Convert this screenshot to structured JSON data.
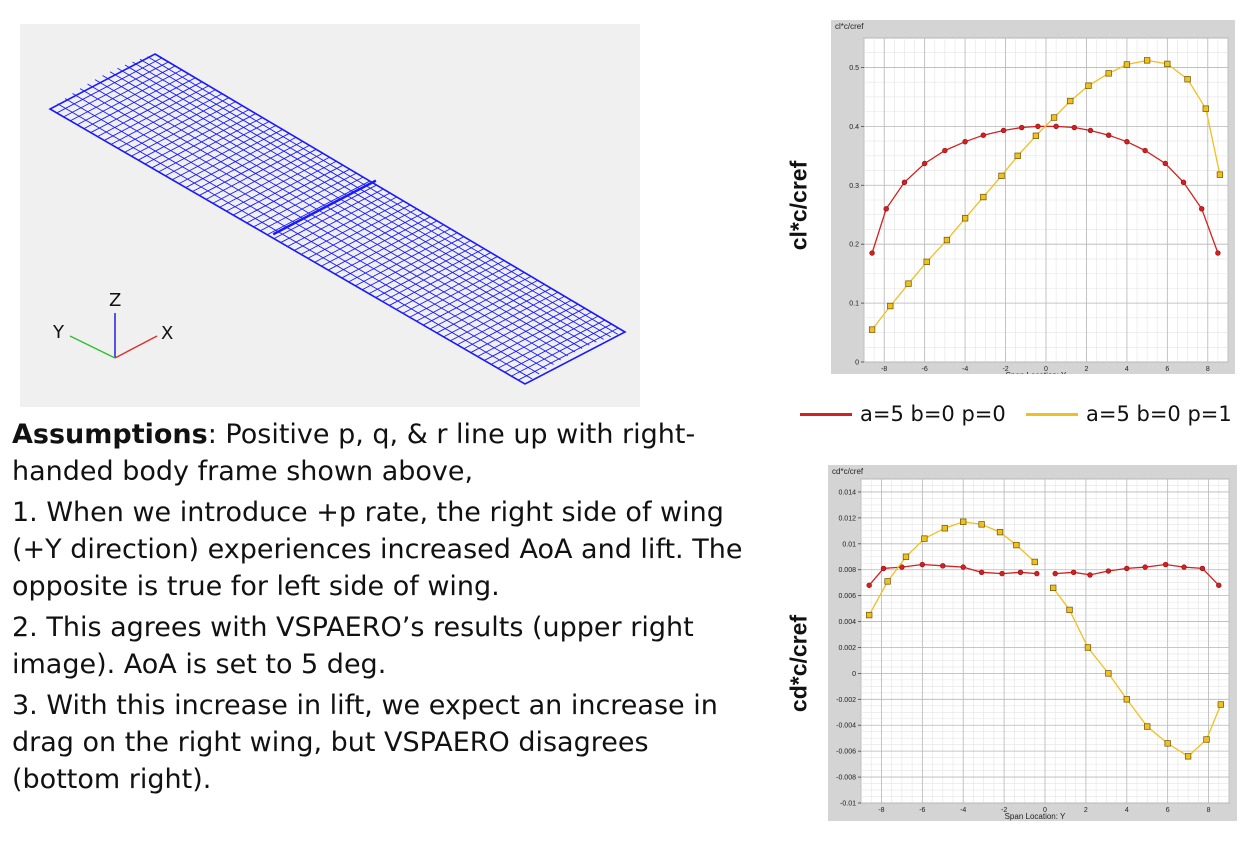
{
  "wing_view": {
    "axes": {
      "x": "X",
      "y": "Y",
      "z": "Z"
    },
    "colors": {
      "mesh": "#1a1aff",
      "x_axis": "#e03030",
      "y_axis": "#30c030",
      "z_axis": "#2020e0"
    }
  },
  "text": {
    "assumptions_bold": "Assumptions",
    "assumptions_rest": ": Positive p, q, & r line up with right-handed body frame shown above,",
    "point1": "1. When we introduce +p rate, the right side of wing (+Y direction) experiences increased AoA and lift. The opposite is true for left side of wing.",
    "point2": "2. This agrees with VSPAERO’s results (upper right image). AoA is set to 5 deg.",
    "point3": "3. With this increase in lift, we expect an increase in drag on the right wing, but VSPAERO disagrees (bottom right)."
  },
  "legend": {
    "items": [
      {
        "label": "a=5 b=0 p=0",
        "color": "#d42020"
      },
      {
        "label": "a=5 b=0 p=1",
        "color": "#f0c020"
      }
    ]
  },
  "chart_data": [
    {
      "type": "line",
      "title": "cl*c/cref",
      "side_label": "cl*c/cref",
      "xlabel": "Span Location: Y",
      "xlim": [
        -9,
        9
      ],
      "ylim": [
        0,
        0.55
      ],
      "xticks": [
        -8,
        -6,
        -4,
        -2,
        0,
        2,
        4,
        6,
        8
      ],
      "yticks": [
        0,
        0.1,
        0.2,
        0.3,
        0.4,
        0.5
      ],
      "ytick_labels": [
        "0",
        "0.1",
        "0.2",
        "0.3",
        "0.4",
        "0.5"
      ],
      "grid": true,
      "series": [
        {
          "name": "a=5 b=0 p=0",
          "color": "#d42020",
          "marker": "circle",
          "x": [
            -8.6,
            -7.9,
            -7.0,
            -6.0,
            -5.0,
            -4.0,
            -3.1,
            -2.1,
            -1.2,
            -0.4,
            0.5,
            1.4,
            2.2,
            3.1,
            4.0,
            4.9,
            5.9,
            6.8,
            7.7,
            8.5
          ],
          "y": [
            0.185,
            0.26,
            0.305,
            0.337,
            0.359,
            0.374,
            0.385,
            0.393,
            0.398,
            0.4,
            0.4,
            0.398,
            0.393,
            0.385,
            0.374,
            0.359,
            0.337,
            0.305,
            0.26,
            0.185
          ]
        },
        {
          "name": "a=5 b=0 p=1",
          "color": "#f0c020",
          "marker": "square",
          "x": [
            -8.6,
            -7.7,
            -6.8,
            -5.9,
            -4.9,
            -4.0,
            -3.1,
            -2.2,
            -1.4,
            -0.5,
            0.4,
            1.2,
            2.1,
            3.1,
            4.0,
            5.0,
            6.0,
            7.0,
            7.9,
            8.6
          ],
          "y": [
            0.055,
            0.095,
            0.133,
            0.17,
            0.207,
            0.244,
            0.28,
            0.316,
            0.35,
            0.384,
            0.415,
            0.443,
            0.469,
            0.49,
            0.505,
            0.512,
            0.506,
            0.48,
            0.43,
            0.318
          ]
        }
      ]
    },
    {
      "type": "line",
      "title": "cd*c/cref",
      "side_label": "cd*c/cref",
      "xlabel": "Span Location: Y",
      "xlim": [
        -9,
        9
      ],
      "ylim": [
        -0.01,
        0.015
      ],
      "xticks": [
        -8,
        -6,
        -4,
        -2,
        0,
        2,
        4,
        6,
        8
      ],
      "yticks": [
        -0.01,
        -0.008,
        -0.006,
        -0.004,
        -0.002,
        0,
        0.002,
        0.004,
        0.006,
        0.008,
        0.01,
        0.012,
        0.014
      ],
      "ytick_labels": [
        "-0.01",
        "-0.008",
        "-0.006",
        "-0.004",
        "-0.002",
        "0",
        "0.002",
        "0.004",
        "0.006",
        "0.008",
        "0.01",
        "0.012",
        "0.014"
      ],
      "grid": true,
      "series": [
        {
          "name": "a=5 b=0 p=0",
          "color": "#d42020",
          "marker": "circle",
          "segments": [
            {
              "x": [
                -8.6,
                -7.9,
                -7.0,
                -6.0,
                -5.0,
                -4.0,
                -3.1,
                -2.1,
                -1.2,
                -0.4
              ],
              "y": [
                0.0068,
                0.0081,
                0.0082,
                0.0084,
                0.0083,
                0.0082,
                0.0078,
                0.0077,
                0.0078,
                0.0077
              ]
            },
            {
              "x": [
                0.5,
                1.4,
                2.2,
                3.1,
                4.0,
                4.9,
                5.9,
                6.8,
                7.7,
                8.5
              ],
              "y": [
                0.0077,
                0.0078,
                0.0076,
                0.0079,
                0.0081,
                0.0082,
                0.0084,
                0.0082,
                0.0081,
                0.0068
              ]
            }
          ]
        },
        {
          "name": "a=5 b=0 p=1",
          "color": "#f0c020",
          "marker": "square",
          "segments": [
            {
              "x": [
                -8.6,
                -7.7,
                -6.8,
                -5.9,
                -4.9,
                -4.0,
                -3.1,
                -2.2,
                -1.4,
                -0.5
              ],
              "y": [
                0.0045,
                0.0071,
                0.009,
                0.0104,
                0.0112,
                0.0117,
                0.0115,
                0.0109,
                0.0099,
                0.0086
              ]
            },
            {
              "x": [
                0.4,
                1.2,
                2.1,
                3.1,
                4.0,
                5.0,
                6.0,
                7.0,
                7.9,
                8.6
              ],
              "y": [
                0.0066,
                0.0049,
                0.002,
                0.0,
                -0.002,
                -0.0041,
                -0.0054,
                -0.0064,
                -0.0051,
                -0.0024
              ]
            }
          ]
        }
      ]
    }
  ]
}
